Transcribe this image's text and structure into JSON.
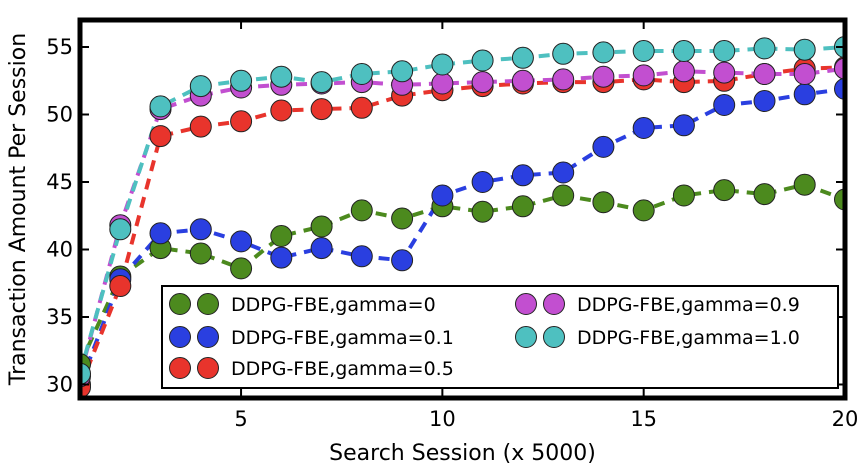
{
  "chart_data": {
    "type": "line",
    "title": "",
    "xlabel": "Search Session (x 5000)",
    "ylabel": "Transaction Amount Per Session",
    "xlim": [
      1,
      20
    ],
    "ylim": [
      29,
      57
    ],
    "xticks": [
      5,
      10,
      15,
      20
    ],
    "yticks": [
      30,
      35,
      40,
      45,
      50,
      55
    ],
    "grid": false,
    "legend_position": "lower-right",
    "x": [
      1,
      2,
      3,
      4,
      5,
      6,
      7,
      8,
      9,
      10,
      11,
      12,
      13,
      14,
      15,
      16,
      17,
      18,
      19,
      20
    ],
    "series": [
      {
        "name": "DDPG-FBE,gamma=0",
        "color": "#4c8a1e",
        "values": [
          31.5,
          38.0,
          40.1,
          39.7,
          38.6,
          41.0,
          41.7,
          42.9,
          42.3,
          43.2,
          42.8,
          43.2,
          44.0,
          43.5,
          42.9,
          44.0,
          44.4,
          44.1,
          44.8,
          43.7
        ]
      },
      {
        "name": "DDPG-FBE,gamma=0.1",
        "color": "#2a3fe0",
        "values": [
          30.0,
          37.8,
          41.2,
          41.5,
          40.6,
          39.4,
          40.1,
          39.5,
          39.2,
          44.0,
          45.0,
          45.5,
          45.7,
          47.6,
          49.0,
          49.2,
          50.7,
          51.0,
          51.5,
          51.9
        ]
      },
      {
        "name": "DDPG-FBE,gamma=0.5",
        "color": "#e8342c",
        "values": [
          29.8,
          37.3,
          48.4,
          49.1,
          49.5,
          50.3,
          50.4,
          50.5,
          51.4,
          51.8,
          52.1,
          52.3,
          52.4,
          52.4,
          52.6,
          52.4,
          52.5,
          53.0,
          53.4,
          53.5
        ]
      },
      {
        "name": "DDPG-FBE,gamma=0.9",
        "color": "#c24fd0",
        "values": [
          30.6,
          41.8,
          50.4,
          51.4,
          52.0,
          52.2,
          52.3,
          52.4,
          52.2,
          52.3,
          52.4,
          52.5,
          52.6,
          52.8,
          52.9,
          53.2,
          53.1,
          53.0,
          53.0,
          53.4
        ]
      },
      {
        "name": "DDPG-FBE,gamma=1.0",
        "color": "#4ec0c0",
        "values": [
          30.8,
          41.5,
          50.6,
          52.1,
          52.5,
          52.8,
          52.4,
          53.0,
          53.2,
          53.7,
          54.0,
          54.2,
          54.5,
          54.6,
          54.7,
          54.7,
          54.7,
          54.9,
          54.8,
          55.0
        ]
      }
    ],
    "legend_columns": [
      [
        "DDPG-FBE,gamma=0",
        "DDPG-FBE,gamma=0.1",
        "DDPG-FBE,gamma=0.5"
      ],
      [
        "DDPG-FBE,gamma=0.9",
        "DDPG-FBE,gamma=1.0"
      ]
    ]
  }
}
